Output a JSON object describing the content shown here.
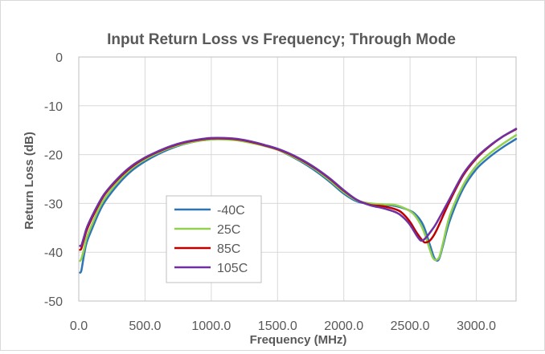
{
  "chart_data": {
    "type": "line",
    "title": "Input Return Loss vs Frequency; Through Mode",
    "xlabel": "Frequency (MHz)",
    "ylabel": "Return Loss (dB)",
    "xlim": [
      0,
      3300
    ],
    "ylim": [
      -50,
      0
    ],
    "xticks": [
      0,
      500,
      1000,
      1500,
      2000,
      2500,
      3000
    ],
    "xtick_labels": [
      "0.0",
      "500.0",
      "1000.0",
      "1500.0",
      "2000.0",
      "2500.0",
      "3000.0"
    ],
    "yticks": [
      0,
      -10,
      -20,
      -30,
      -40,
      -50
    ],
    "ytick_labels": [
      "0",
      "-10",
      "-20",
      "-30",
      "-40",
      "-50"
    ],
    "grid": true,
    "legend_position": "lower-left-inside",
    "series": [
      {
        "name": "-40C",
        "color": "#2e75b6",
        "x": [
          10,
          20,
          40,
          60,
          100,
          150,
          200,
          300,
          400,
          500,
          600,
          700,
          800,
          900,
          1000,
          1100,
          1200,
          1300,
          1400,
          1500,
          1600,
          1700,
          1800,
          1900,
          2000,
          2100,
          2200,
          2300,
          2400,
          2500,
          2550,
          2600,
          2650,
          2680,
          2700,
          2720,
          2750,
          2800,
          2900,
          3000,
          3100,
          3200,
          3300
        ],
        "y": [
          -44.2,
          -43.7,
          -40.5,
          -38.0,
          -35.2,
          -32.0,
          -29.5,
          -26.0,
          -23.3,
          -21.4,
          -19.9,
          -18.7,
          -17.8,
          -17.2,
          -16.9,
          -16.8,
          -17.0,
          -17.5,
          -18.2,
          -19.0,
          -20.3,
          -21.8,
          -23.6,
          -25.7,
          -28.0,
          -29.6,
          -30.1,
          -30.3,
          -30.6,
          -31.5,
          -32.5,
          -34.5,
          -38.5,
          -41.0,
          -41.7,
          -41.3,
          -38.5,
          -33.5,
          -27.0,
          -23.0,
          -20.5,
          -18.5,
          -16.8
        ]
      },
      {
        "name": "25C",
        "color": "#92d050",
        "x": [
          10,
          20,
          40,
          60,
          100,
          150,
          200,
          300,
          400,
          500,
          600,
          700,
          800,
          900,
          1000,
          1100,
          1200,
          1300,
          1400,
          1500,
          1600,
          1700,
          1800,
          1900,
          2000,
          2100,
          2200,
          2300,
          2400,
          2500,
          2550,
          2600,
          2650,
          2670,
          2690,
          2720,
          2750,
          2800,
          2900,
          3000,
          3100,
          3200,
          3300
        ],
        "y": [
          -41.8,
          -41.3,
          -39.3,
          -37.0,
          -34.3,
          -31.2,
          -28.8,
          -25.4,
          -22.8,
          -21.0,
          -19.6,
          -18.5,
          -17.7,
          -17.2,
          -16.9,
          -16.9,
          -17.1,
          -17.6,
          -18.2,
          -19.0,
          -20.2,
          -21.6,
          -23.3,
          -25.4,
          -27.7,
          -29.4,
          -30.0,
          -30.2,
          -30.4,
          -31.6,
          -33.0,
          -35.5,
          -39.5,
          -41.0,
          -41.6,
          -41.0,
          -38.0,
          -32.5,
          -26.3,
          -22.3,
          -19.8,
          -17.8,
          -16.0
        ]
      },
      {
        "name": "85C",
        "color": "#c00000",
        "x": [
          10,
          20,
          40,
          60,
          100,
          150,
          200,
          300,
          400,
          500,
          600,
          700,
          800,
          900,
          1000,
          1100,
          1200,
          1300,
          1400,
          1500,
          1600,
          1700,
          1800,
          1900,
          2000,
          2100,
          2200,
          2300,
          2400,
          2450,
          2500,
          2550,
          2600,
          2620,
          2640,
          2660,
          2700,
          2800,
          2900,
          3000,
          3100,
          3200,
          3300
        ],
        "y": [
          -39.5,
          -39.2,
          -37.3,
          -35.5,
          -33.0,
          -30.3,
          -28.0,
          -24.9,
          -22.5,
          -20.7,
          -19.4,
          -18.3,
          -17.5,
          -17.0,
          -16.7,
          -16.7,
          -16.9,
          -17.4,
          -18.1,
          -18.9,
          -20.0,
          -21.4,
          -23.1,
          -25.1,
          -27.4,
          -29.3,
          -30.3,
          -30.6,
          -31.3,
          -32.2,
          -33.8,
          -36.0,
          -37.8,
          -38.0,
          -37.8,
          -37.3,
          -35.5,
          -29.5,
          -24.3,
          -20.8,
          -18.3,
          -16.3,
          -14.8
        ]
      },
      {
        "name": "105C",
        "color": "#7030a0",
        "x": [
          10,
          20,
          40,
          60,
          100,
          150,
          200,
          300,
          400,
          500,
          600,
          700,
          800,
          900,
          1000,
          1100,
          1200,
          1300,
          1400,
          1500,
          1600,
          1700,
          1800,
          1900,
          2000,
          2100,
          2200,
          2300,
          2400,
          2450,
          2500,
          2550,
          2580,
          2600,
          2620,
          2650,
          2700,
          2800,
          2900,
          3000,
          3100,
          3200,
          3300
        ],
        "y": [
          -38.7,
          -38.6,
          -36.8,
          -35.0,
          -32.6,
          -30.0,
          -27.8,
          -24.7,
          -22.3,
          -20.6,
          -19.3,
          -18.2,
          -17.4,
          -16.9,
          -16.6,
          -16.6,
          -16.8,
          -17.3,
          -18.0,
          -18.8,
          -19.9,
          -21.3,
          -23.0,
          -25.0,
          -27.3,
          -29.3,
          -30.4,
          -31.0,
          -31.9,
          -32.9,
          -34.4,
          -36.6,
          -37.6,
          -37.5,
          -37.0,
          -36.0,
          -34.0,
          -29.0,
          -24.0,
          -20.6,
          -18.2,
          -16.3,
          -14.7
        ]
      }
    ]
  }
}
